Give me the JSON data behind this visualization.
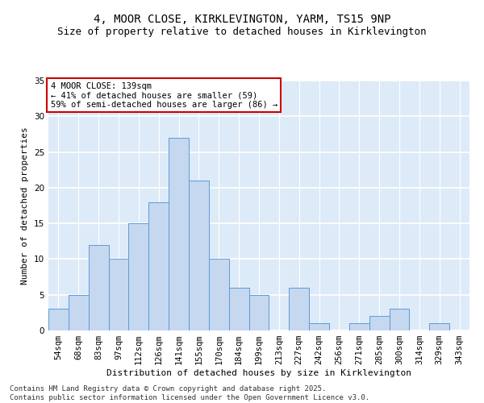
{
  "title1": "4, MOOR CLOSE, KIRKLEVINGTON, YARM, TS15 9NP",
  "title2": "Size of property relative to detached houses in Kirklevington",
  "xlabel": "Distribution of detached houses by size in Kirklevington",
  "ylabel": "Number of detached properties",
  "categories": [
    "54sqm",
    "68sqm",
    "83sqm",
    "97sqm",
    "112sqm",
    "126sqm",
    "141sqm",
    "155sqm",
    "170sqm",
    "184sqm",
    "199sqm",
    "213sqm",
    "227sqm",
    "242sqm",
    "256sqm",
    "271sqm",
    "285sqm",
    "300sqm",
    "314sqm",
    "329sqm",
    "343sqm"
  ],
  "values": [
    3,
    5,
    12,
    10,
    15,
    18,
    27,
    21,
    10,
    6,
    5,
    0,
    6,
    1,
    0,
    1,
    2,
    3,
    0,
    1,
    0
  ],
  "bar_color": "#c5d8f0",
  "bar_edge_color": "#5b9bd5",
  "annotation_text": "4 MOOR CLOSE: 139sqm\n← 41% of detached houses are smaller (59)\n59% of semi-detached houses are larger (86) →",
  "annotation_box_color": "#ffffff",
  "annotation_box_edge_color": "#cc0000",
  "ylim": [
    0,
    35
  ],
  "yticks": [
    0,
    5,
    10,
    15,
    20,
    25,
    30,
    35
  ],
  "bg_color": "#ddeaf8",
  "grid_color": "#ffffff",
  "footer": "Contains HM Land Registry data © Crown copyright and database right 2025.\nContains public sector information licensed under the Open Government Licence v3.0.",
  "title_fontsize": 10,
  "subtitle_fontsize": 9,
  "axis_label_fontsize": 8,
  "tick_fontsize": 7.5,
  "annotation_fontsize": 7.5,
  "footer_fontsize": 6.5
}
